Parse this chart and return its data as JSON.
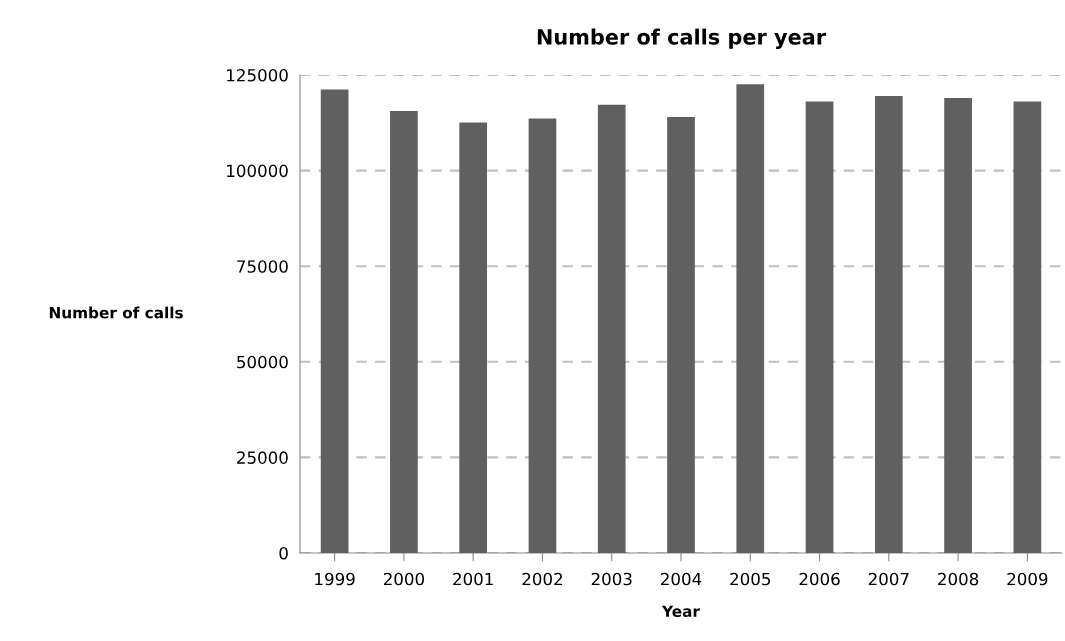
{
  "chart_data": {
    "type": "bar",
    "title": "Number of calls per year",
    "xlabel": "Year",
    "ylabel": "Number of calls",
    "categories": [
      "1999",
      "2000",
      "2001",
      "2002",
      "2003",
      "2004",
      "2005",
      "2006",
      "2007",
      "2008",
      "2009"
    ],
    "values": [
      121200,
      115600,
      112600,
      113600,
      117200,
      114000,
      122600,
      118100,
      119500,
      119000,
      118100
    ],
    "color": "#606060",
    "ylim": [
      0,
      125000
    ],
    "yticks": [
      0,
      25000,
      50000,
      75000,
      100000,
      125000
    ],
    "grid": "y"
  }
}
